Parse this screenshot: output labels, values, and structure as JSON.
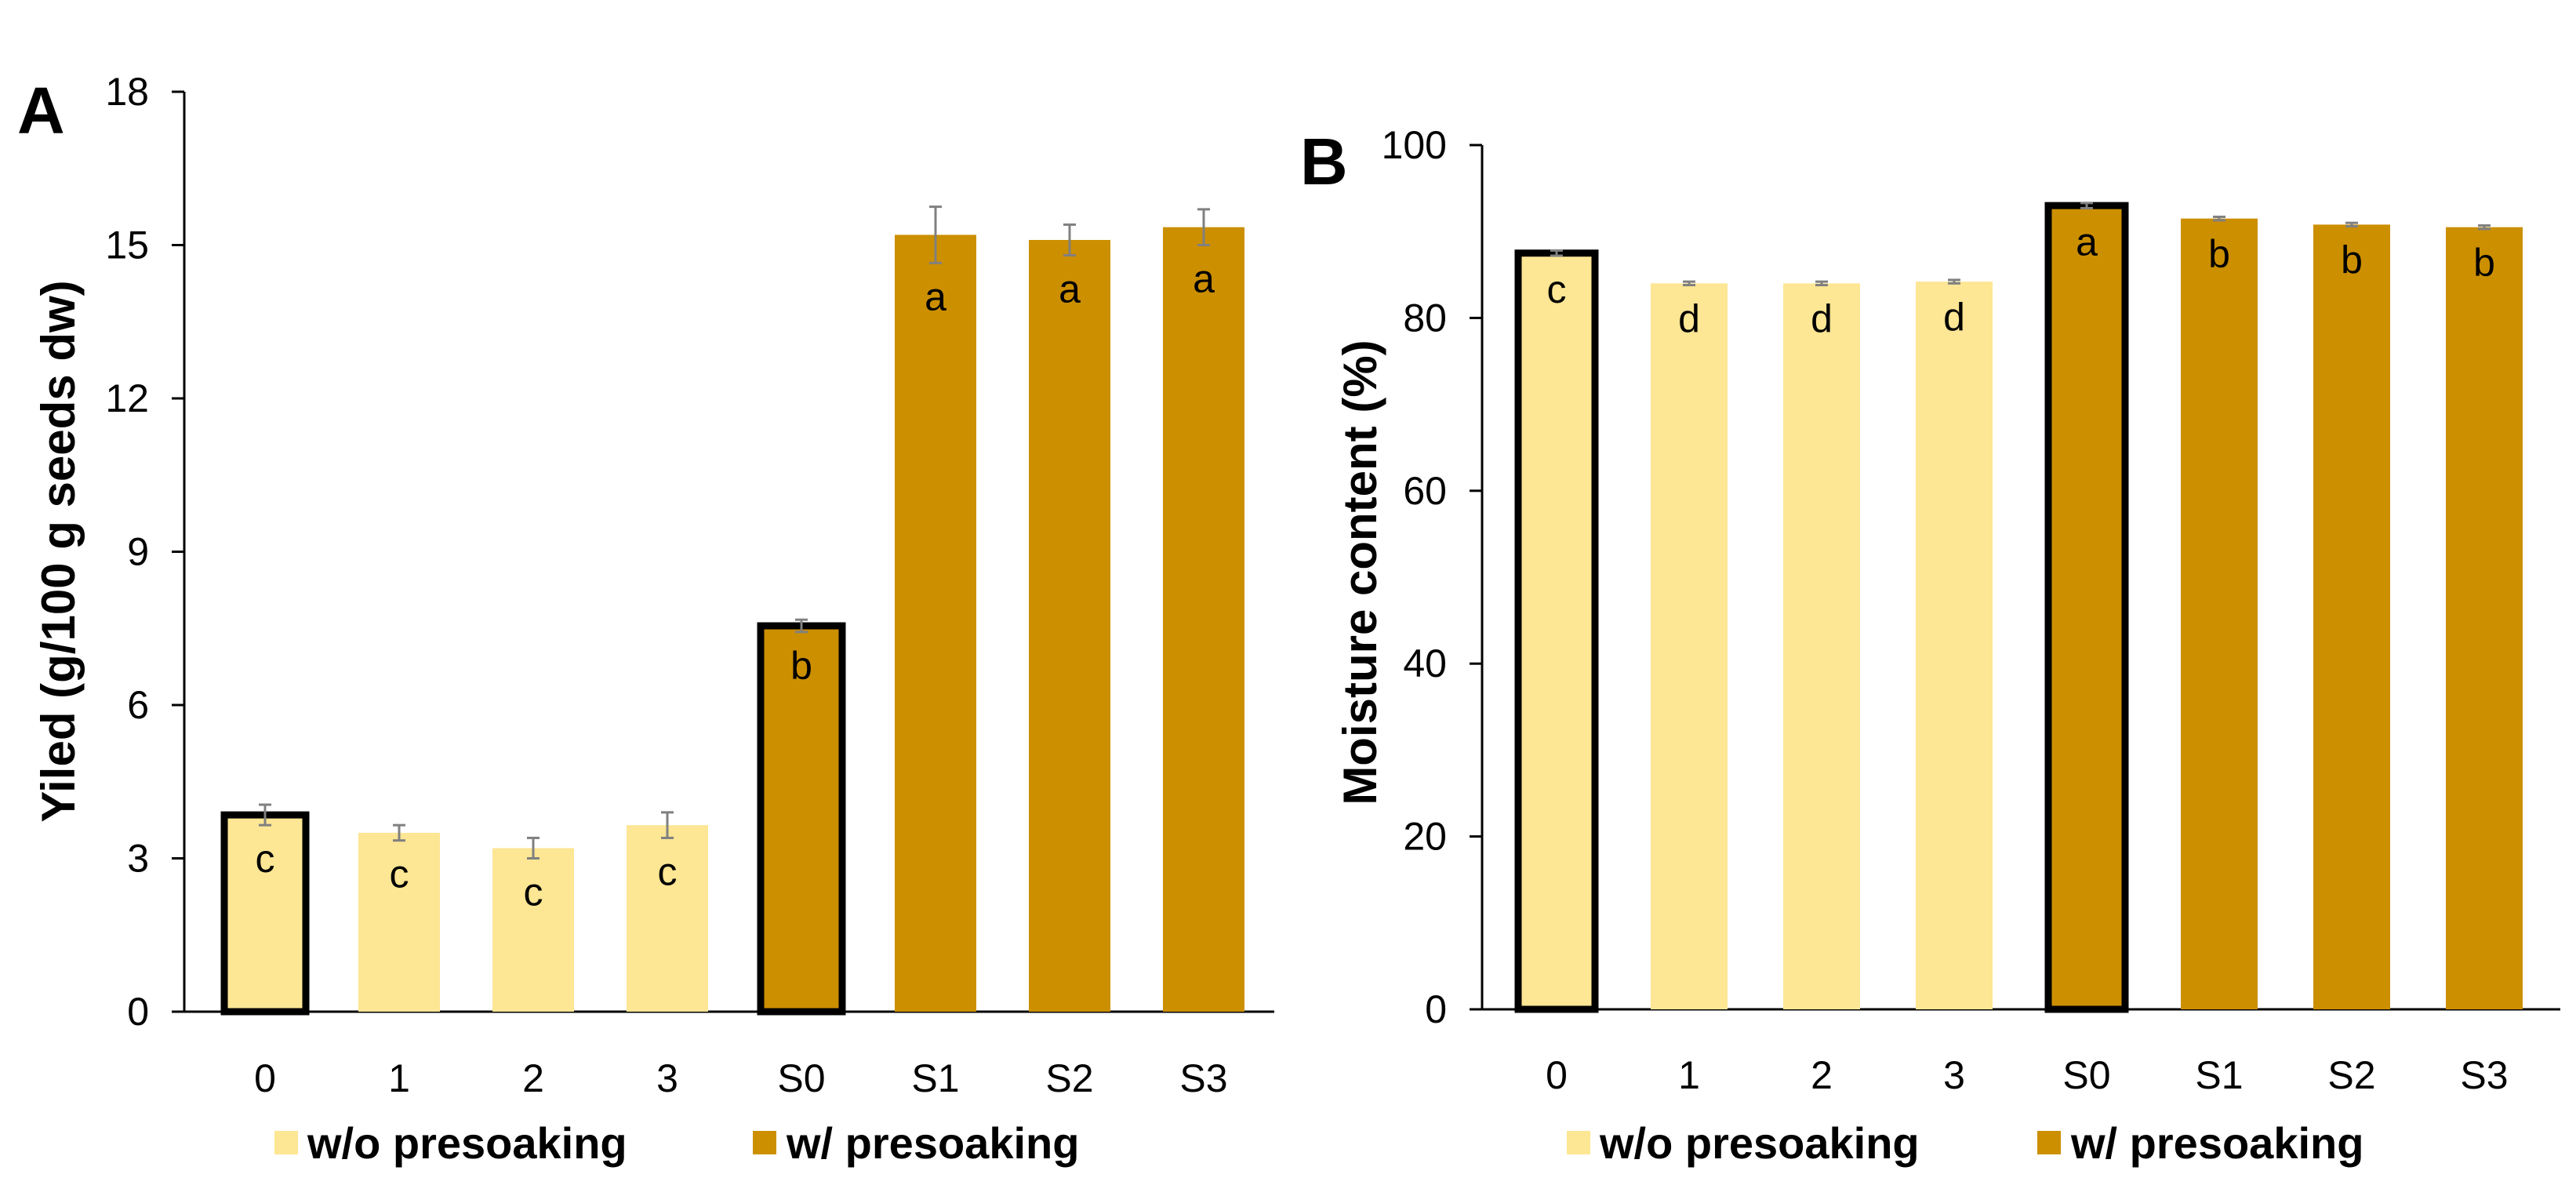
{
  "colors": {
    "without_presoaking": "#fde694",
    "with_presoaking": "#cc8f00",
    "highlight_outline": "#000000",
    "error_bar": "#808080",
    "axis": "#000000"
  },
  "chart_data": [
    {
      "panel": "A",
      "type": "bar",
      "title": "",
      "xlabel": "",
      "ylabel": "Yiled (g/100 g seeds dw)",
      "ylim": [
        0,
        18
      ],
      "yticks": [
        "0",
        "3",
        "6",
        "9",
        "12",
        "15",
        "18"
      ],
      "categories": [
        "0",
        "1",
        "2",
        "3",
        "S0",
        "S1",
        "S2",
        "S3"
      ],
      "values": [
        3.85,
        3.5,
        3.2,
        3.65,
        7.55,
        15.2,
        15.1,
        15.35
      ],
      "errors": [
        0.2,
        0.15,
        0.2,
        0.25,
        0.12,
        0.55,
        0.3,
        0.35
      ],
      "groups": [
        "without",
        "without",
        "without",
        "without",
        "with",
        "with",
        "with",
        "with"
      ],
      "highlighted": [
        true,
        false,
        false,
        false,
        true,
        false,
        false,
        false
      ],
      "significance": [
        "c",
        "c",
        "c",
        "c",
        "b",
        "a",
        "a",
        "a"
      ],
      "legend": [
        {
          "key": "without",
          "label": "w/o presoaking"
        },
        {
          "key": "with",
          "label": "w/ presoaking"
        }
      ],
      "legend_position": "bottom"
    },
    {
      "panel": "B",
      "type": "bar",
      "title": "",
      "xlabel": "",
      "ylabel": "Moisture content (%)",
      "ylim": [
        0,
        100
      ],
      "yticks": [
        "0",
        "20",
        "40",
        "60",
        "80",
        "100"
      ],
      "categories": [
        "0",
        "1",
        "2",
        "3",
        "S0",
        "S1",
        "S2",
        "S3"
      ],
      "values": [
        87.5,
        84.0,
        84.0,
        84.2,
        93.0,
        91.5,
        90.8,
        90.5
      ],
      "errors": [
        0.3,
        0.2,
        0.2,
        0.2,
        0.3,
        0.2,
        0.2,
        0.2
      ],
      "groups": [
        "without",
        "without",
        "without",
        "without",
        "with",
        "with",
        "with",
        "with"
      ],
      "highlighted": [
        true,
        false,
        false,
        false,
        true,
        false,
        false,
        false
      ],
      "significance": [
        "c",
        "d",
        "d",
        "d",
        "a",
        "b",
        "b",
        "b"
      ],
      "legend": [
        {
          "key": "without",
          "label": "w/o presoaking"
        },
        {
          "key": "with",
          "label": "w/ presoaking"
        }
      ],
      "legend_position": "bottom"
    }
  ]
}
